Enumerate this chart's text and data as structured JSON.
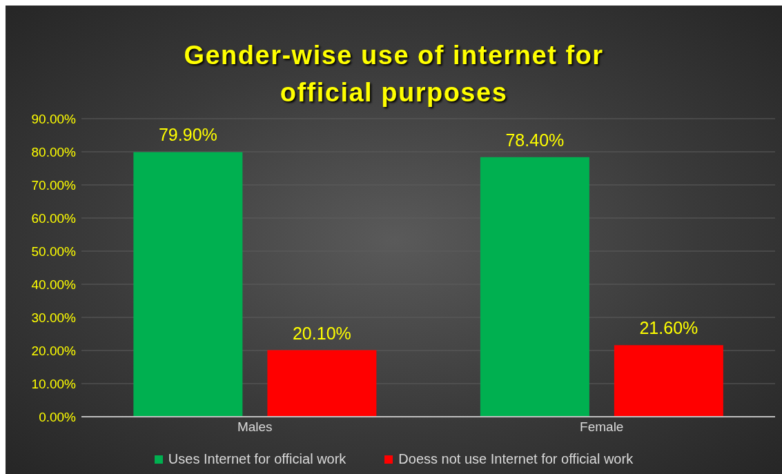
{
  "chart_data": {
    "type": "bar",
    "title": "Gender-wise use of internet for official purposes",
    "categories": [
      "Males",
      "Female"
    ],
    "series": [
      {
        "name": "Uses Internet for official work",
        "color": "#00b050",
        "values": [
          79.9,
          78.4
        ],
        "value_labels": [
          "79.90%",
          "78.40%"
        ]
      },
      {
        "name": "Doess not use Internet for official work",
        "color": "#ff0000",
        "values": [
          20.1,
          21.6
        ],
        "value_labels": [
          "20.10%",
          "21.60%"
        ]
      }
    ],
    "ylim": [
      0,
      90
    ],
    "yticks": [
      {
        "value": 0,
        "label": "0.00%"
      },
      {
        "value": 10,
        "label": "10.00%"
      },
      {
        "value": 20,
        "label": "20.00%"
      },
      {
        "value": 30,
        "label": "30.00%"
      },
      {
        "value": 40,
        "label": "40.00%"
      },
      {
        "value": 50,
        "label": "50.00%"
      },
      {
        "value": 60,
        "label": "60.00%"
      },
      {
        "value": 70,
        "label": "70.00%"
      },
      {
        "value": 80,
        "label": "80.00%"
      },
      {
        "value": 90,
        "label": "90.00%"
      }
    ],
    "grid": "y",
    "legend": "bottom"
  }
}
